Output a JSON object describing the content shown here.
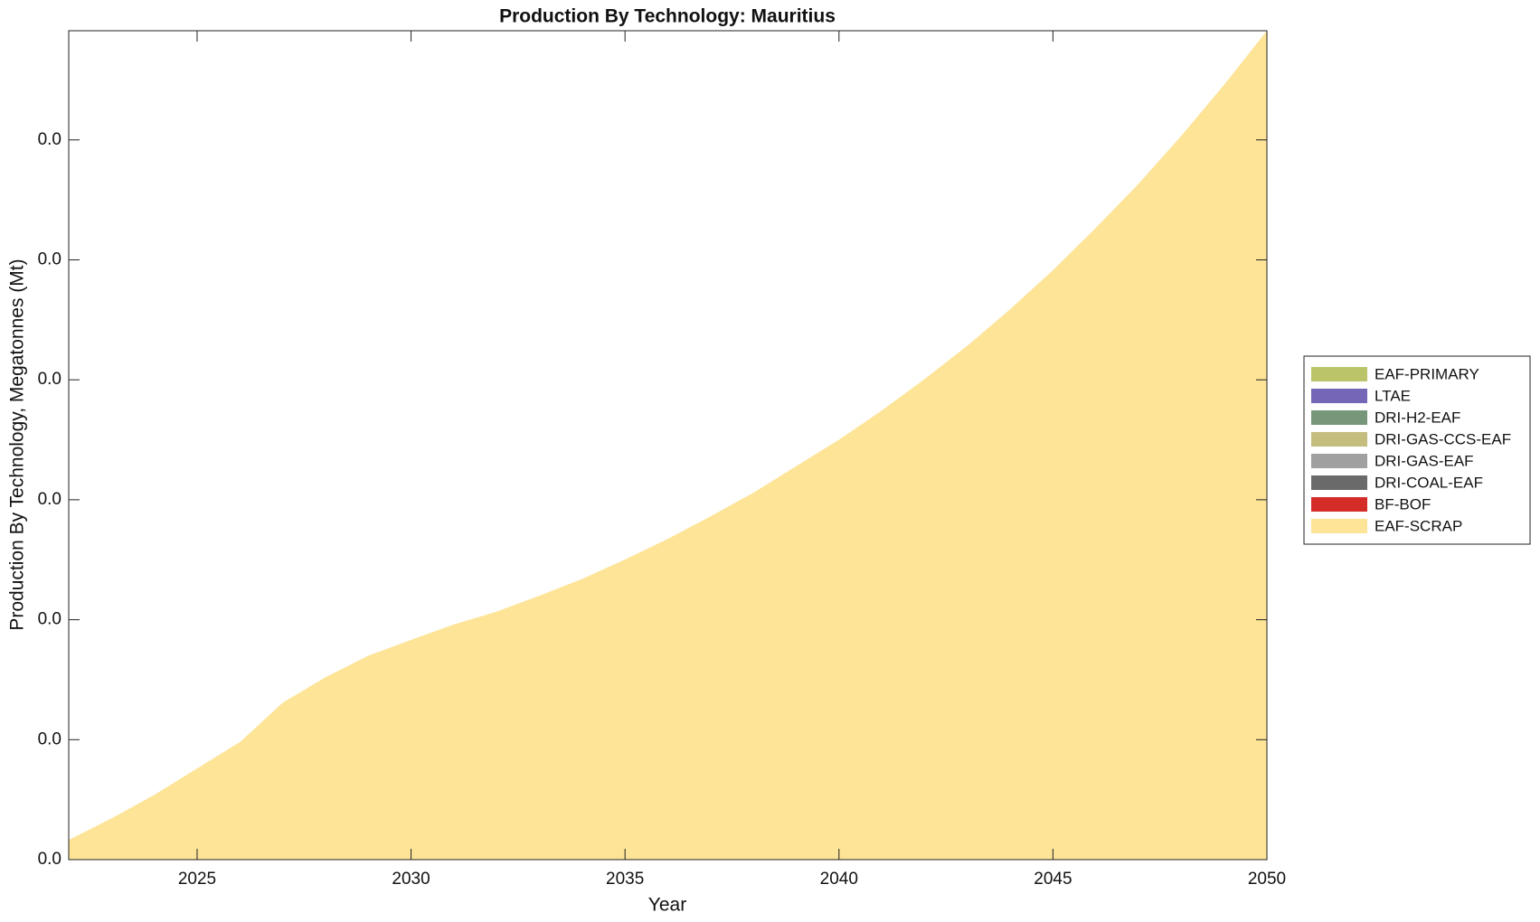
{
  "chart_data": {
    "type": "stacked-area",
    "title": "Production By Technology: Mauritius",
    "x_label": "Year",
    "y_label": "Production By Technology, Megatonnes (Mt)",
    "x": [
      2022,
      2023,
      2024,
      2025,
      2026,
      2027,
      2028,
      2029,
      2030,
      2031,
      2032,
      2033,
      2034,
      2035,
      2036,
      2037,
      2038,
      2039,
      2040,
      2041,
      2042,
      2043,
      2044,
      2045,
      2046,
      2047,
      2048,
      2049,
      2050
    ],
    "series": [
      {
        "name": "EAF-SCRAP",
        "color": "#fde497",
        "values": [
          0.00082,
          0.00172,
          0.0027,
          0.0038,
          0.0049,
          0.00654,
          0.0076,
          0.0085,
          0.00916,
          0.0098,
          0.01034,
          0.011,
          0.0117,
          0.01251,
          0.01337,
          0.01431,
          0.01529,
          0.0164,
          0.0175,
          0.01872,
          0.02003,
          0.02142,
          0.02294,
          0.02457,
          0.02633,
          0.02817,
          0.03017,
          0.0323,
          0.03455
        ]
      },
      {
        "name": "BF-BOF",
        "color": "#d42d27",
        "values": [
          0,
          0,
          0,
          0,
          0,
          0,
          0,
          0,
          0,
          0,
          0,
          0,
          0,
          0,
          0,
          0,
          0,
          0,
          0,
          0,
          0,
          0,
          0,
          0,
          0,
          0,
          0,
          0,
          0
        ]
      },
      {
        "name": "DRI-COAL-EAF",
        "color": "#6a6a6a",
        "values": [
          0,
          0,
          0,
          0,
          0,
          0,
          0,
          0,
          0,
          0,
          0,
          0,
          0,
          0,
          0,
          0,
          0,
          0,
          0,
          0,
          0,
          0,
          0,
          0,
          0,
          0,
          0,
          0,
          0
        ]
      },
      {
        "name": "DRI-GAS-EAF",
        "color": "#a0a0a0",
        "values": [
          0,
          0,
          0,
          0,
          0,
          0,
          0,
          0,
          0,
          0,
          0,
          0,
          0,
          0,
          0,
          0,
          0,
          0,
          0,
          0,
          0,
          0,
          0,
          0,
          0,
          0,
          0,
          0,
          0
        ]
      },
      {
        "name": "DRI-GAS-CCS-EAF",
        "color": "#c4bd7e",
        "values": [
          0,
          0,
          0,
          0,
          0,
          0,
          0,
          0,
          0,
          0,
          0,
          0,
          0,
          0,
          0,
          0,
          0,
          0,
          0,
          0,
          0,
          0,
          0,
          0,
          0,
          0,
          0,
          0,
          0
        ]
      },
      {
        "name": "DRI-H2-EAF",
        "color": "#76977a",
        "values": [
          0,
          0,
          0,
          0,
          0,
          0,
          0,
          0,
          0,
          0,
          0,
          0,
          0,
          0,
          0,
          0,
          0,
          0,
          0,
          0,
          0,
          0,
          0,
          0,
          0,
          0,
          0,
          0,
          0
        ]
      },
      {
        "name": "LTAE",
        "color": "#7566b8",
        "values": [
          0,
          0,
          0,
          0,
          0,
          0,
          0,
          0,
          0,
          0,
          0,
          0,
          0,
          0,
          0,
          0,
          0,
          0,
          0,
          0,
          0,
          0,
          0,
          0,
          0,
          0,
          0,
          0,
          0
        ]
      },
      {
        "name": "EAF-PRIMARY",
        "color": "#bcc46a",
        "values": [
          0,
          0,
          0,
          0,
          0,
          0,
          0,
          0,
          0,
          0,
          0,
          0,
          0,
          0,
          0,
          0,
          0,
          0,
          0,
          0,
          0,
          0,
          0,
          0,
          0,
          0,
          0,
          0,
          0
        ]
      }
    ],
    "xlim": [
      2022,
      2050
    ],
    "xticks": [
      2025,
      2030,
      2035,
      2040,
      2045,
      2050
    ],
    "ylim": [
      0,
      0.03455
    ],
    "yticks": [
      {
        "value": 0,
        "label": "0.0"
      },
      {
        "value": 0.005,
        "label": "0.0"
      },
      {
        "value": 0.01,
        "label": "0.0"
      },
      {
        "value": 0.015,
        "label": "0.0"
      },
      {
        "value": 0.02,
        "label": "0.0"
      },
      {
        "value": 0.025,
        "label": "0.0"
      },
      {
        "value": 0.03,
        "label": "0.0"
      }
    ]
  }
}
